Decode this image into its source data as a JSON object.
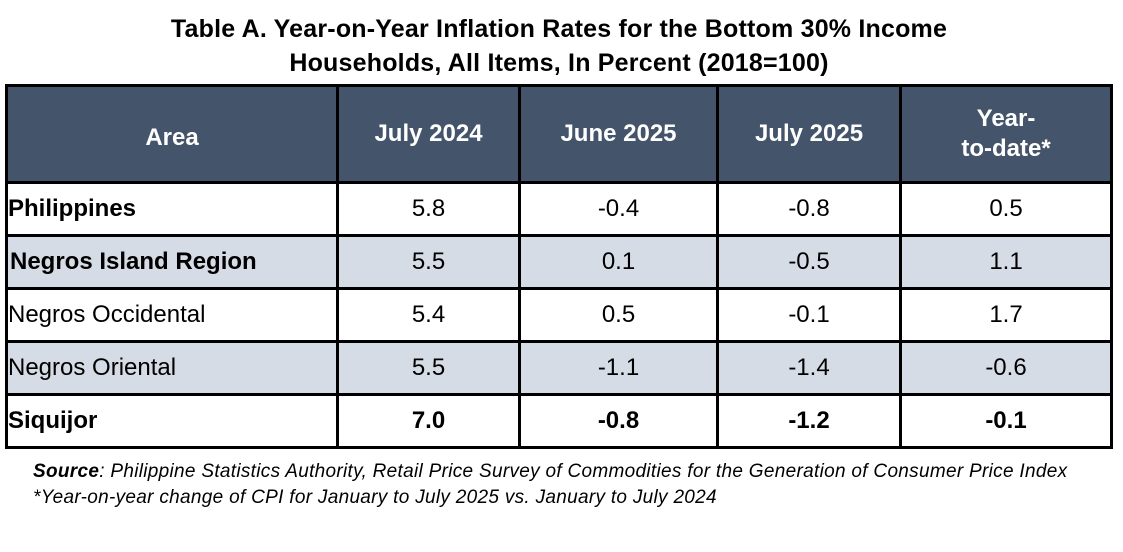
{
  "title": {
    "line1": "Table A. Year-on-Year Inflation Rates for the Bottom 30% Income",
    "line2": "Households, All Items, In Percent (2018=100)"
  },
  "table": {
    "headers": {
      "area": "Area",
      "col1": "July 2024",
      "col2": "June 2025",
      "col3": "July 2025",
      "col4_line1": "Year-",
      "col4_line2": "to-date*"
    },
    "rows": [
      {
        "area": "Philippines",
        "july_2024": "5.8",
        "june_2025": "-0.4",
        "july_2025": "-0.8",
        "ytd": "0.5"
      },
      {
        "area": "Negros Island Region",
        "july_2024": "5.5",
        "june_2025": "0.1",
        "july_2025": "-0.5",
        "ytd": "1.1"
      },
      {
        "area": "Negros Occidental",
        "july_2024": "5.4",
        "june_2025": "0.5",
        "july_2025": "-0.1",
        "ytd": "1.7"
      },
      {
        "area": "Negros Oriental",
        "july_2024": "5.5",
        "june_2025": "-1.1",
        "july_2025": "-1.4",
        "ytd": "-0.6"
      },
      {
        "area": "Siquijor",
        "july_2024": "7.0",
        "june_2025": "-0.8",
        "july_2025": "-1.2",
        "ytd": "-0.1"
      }
    ]
  },
  "notes": {
    "source_label": "Source",
    "source_text": ": Philippine Statistics Authority, Retail Price Survey of Commodities for the Generation of Consumer Price Index",
    "asterisk_note": "*Year-on-year change of CPI for January to July 2025 vs. January to July 2024"
  },
  "colors": {
    "header_background": "#44546a",
    "header_text": "#ffffff",
    "shaded_row": "#d6dce5",
    "border": "#000000"
  }
}
